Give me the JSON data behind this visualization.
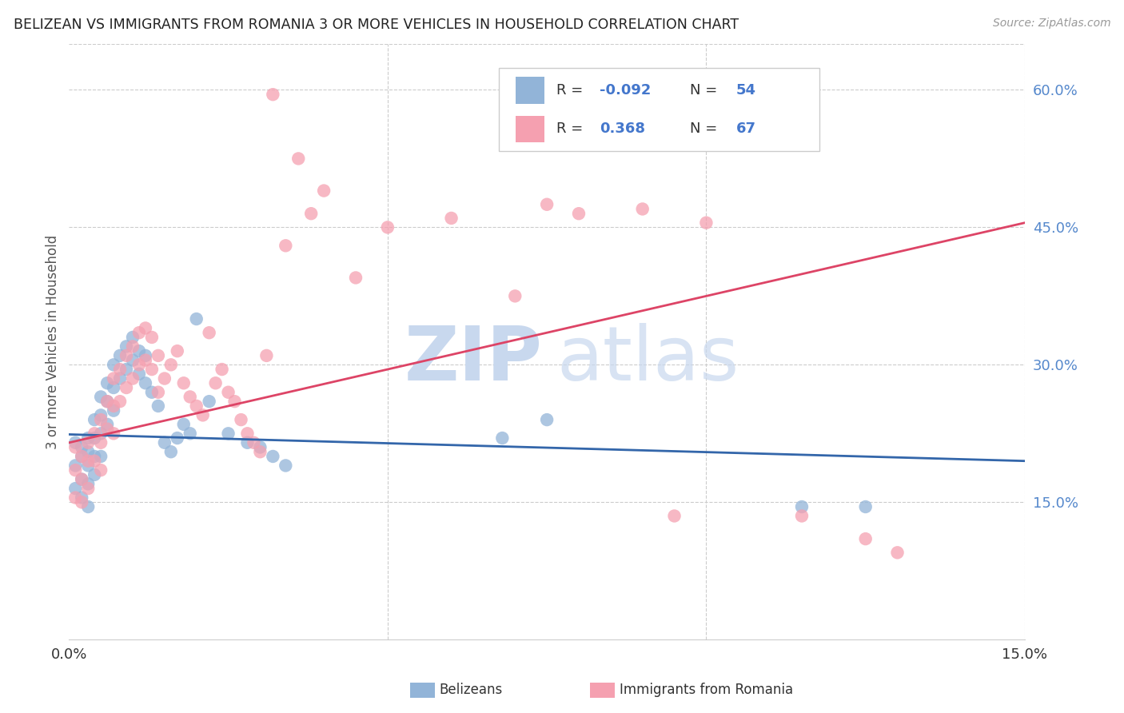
{
  "title": "BELIZEAN VS IMMIGRANTS FROM ROMANIA 3 OR MORE VEHICLES IN HOUSEHOLD CORRELATION CHART",
  "source": "Source: ZipAtlas.com",
  "ylabel": "3 or more Vehicles in Household",
  "x_min": 0.0,
  "x_max": 0.15,
  "y_min": 0.0,
  "y_max": 0.65,
  "x_ticks": [
    0.0,
    0.05,
    0.1,
    0.15
  ],
  "x_tick_labels": [
    "0.0%",
    "",
    "",
    "15.0%"
  ],
  "y_ticks_right": [
    0.15,
    0.3,
    0.45,
    0.6
  ],
  "y_tick_labels_right": [
    "15.0%",
    "30.0%",
    "45.0%",
    "60.0%"
  ],
  "color_blue": "#92B4D8",
  "color_pink": "#F5A0B0",
  "color_line_blue": "#3366AA",
  "color_line_pink": "#DD4466",
  "legend_label1": "Belizeans",
  "legend_label2": "Immigrants from Romania",
  "blue_r": "-0.092",
  "blue_n": "54",
  "pink_r": "0.368",
  "pink_n": "67",
  "blue_line_x0": 0.0,
  "blue_line_y0": 0.224,
  "blue_line_x1": 0.15,
  "blue_line_y1": 0.195,
  "pink_line_x0": 0.0,
  "pink_line_y0": 0.215,
  "pink_line_x1": 0.15,
  "pink_line_y1": 0.455,
  "blue_scatter_x": [
    0.001,
    0.001,
    0.001,
    0.002,
    0.002,
    0.002,
    0.002,
    0.003,
    0.003,
    0.003,
    0.003,
    0.003,
    0.004,
    0.004,
    0.004,
    0.004,
    0.005,
    0.005,
    0.005,
    0.005,
    0.006,
    0.006,
    0.006,
    0.007,
    0.007,
    0.007,
    0.008,
    0.008,
    0.009,
    0.009,
    0.01,
    0.01,
    0.011,
    0.011,
    0.012,
    0.012,
    0.013,
    0.014,
    0.015,
    0.016,
    0.017,
    0.018,
    0.019,
    0.02,
    0.022,
    0.025,
    0.028,
    0.03,
    0.032,
    0.034,
    0.068,
    0.075,
    0.115,
    0.125
  ],
  "blue_scatter_y": [
    0.215,
    0.19,
    0.165,
    0.21,
    0.2,
    0.175,
    0.155,
    0.22,
    0.205,
    0.19,
    0.17,
    0.145,
    0.24,
    0.22,
    0.2,
    0.18,
    0.265,
    0.245,
    0.225,
    0.2,
    0.28,
    0.26,
    0.235,
    0.3,
    0.275,
    0.25,
    0.31,
    0.285,
    0.32,
    0.295,
    0.33,
    0.305,
    0.315,
    0.29,
    0.31,
    0.28,
    0.27,
    0.255,
    0.215,
    0.205,
    0.22,
    0.235,
    0.225,
    0.35,
    0.26,
    0.225,
    0.215,
    0.21,
    0.2,
    0.19,
    0.22,
    0.24,
    0.145,
    0.145
  ],
  "pink_scatter_x": [
    0.001,
    0.001,
    0.001,
    0.002,
    0.002,
    0.002,
    0.003,
    0.003,
    0.003,
    0.004,
    0.004,
    0.005,
    0.005,
    0.005,
    0.006,
    0.006,
    0.007,
    0.007,
    0.007,
    0.008,
    0.008,
    0.009,
    0.009,
    0.01,
    0.01,
    0.011,
    0.011,
    0.012,
    0.012,
    0.013,
    0.013,
    0.014,
    0.014,
    0.015,
    0.016,
    0.017,
    0.018,
    0.019,
    0.02,
    0.021,
    0.022,
    0.023,
    0.024,
    0.025,
    0.026,
    0.027,
    0.028,
    0.029,
    0.03,
    0.031,
    0.032,
    0.034,
    0.036,
    0.038,
    0.04,
    0.045,
    0.05,
    0.06,
    0.07,
    0.075,
    0.08,
    0.09,
    0.095,
    0.1,
    0.115,
    0.125,
    0.13
  ],
  "pink_scatter_y": [
    0.21,
    0.185,
    0.155,
    0.2,
    0.175,
    0.15,
    0.215,
    0.195,
    0.165,
    0.225,
    0.195,
    0.24,
    0.215,
    0.185,
    0.26,
    0.23,
    0.285,
    0.255,
    0.225,
    0.295,
    0.26,
    0.31,
    0.275,
    0.32,
    0.285,
    0.335,
    0.3,
    0.34,
    0.305,
    0.33,
    0.295,
    0.31,
    0.27,
    0.285,
    0.3,
    0.315,
    0.28,
    0.265,
    0.255,
    0.245,
    0.335,
    0.28,
    0.295,
    0.27,
    0.26,
    0.24,
    0.225,
    0.215,
    0.205,
    0.31,
    0.595,
    0.43,
    0.525,
    0.465,
    0.49,
    0.395,
    0.45,
    0.46,
    0.375,
    0.475,
    0.465,
    0.47,
    0.135,
    0.455,
    0.135,
    0.11,
    0.095
  ]
}
